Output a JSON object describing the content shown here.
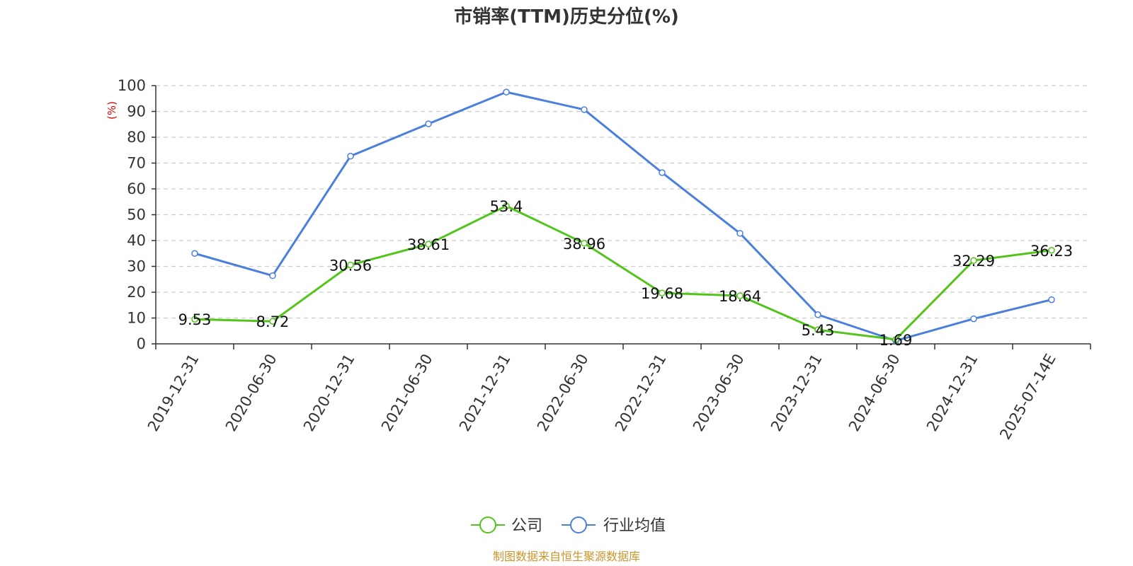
{
  "chart_data": {
    "type": "line",
    "title": "市销率(TTM)历史分位(%)",
    "ylabel": "(%)",
    "xlabel": "",
    "categories": [
      "2019-12-31",
      "2020-06-30",
      "2020-12-31",
      "2021-06-30",
      "2021-12-31",
      "2022-06-30",
      "2022-12-31",
      "2023-06-30",
      "2023-12-31",
      "2024-06-30",
      "2024-12-31",
      "2025-07-14E"
    ],
    "ylim": [
      0,
      100
    ],
    "yticks": [
      0,
      10,
      20,
      30,
      40,
      50,
      60,
      70,
      80,
      90,
      100
    ],
    "grid": true,
    "legend_position": "bottom-center",
    "series": [
      {
        "name": "公司",
        "color": "#52c41a",
        "values": [
          9.53,
          8.72,
          30.56,
          38.61,
          53.4,
          38.96,
          19.68,
          18.64,
          5.43,
          1.69,
          32.29,
          36.23
        ],
        "labels": [
          "9.53",
          "8.72",
          "30.56",
          "38.61",
          "53.4",
          "38.96",
          "19.68",
          "18.64",
          "5.43",
          "1.69",
          "32.29",
          "36.23"
        ]
      },
      {
        "name": "行业均值",
        "color": "#4a7fdc",
        "values": [
          35.0,
          26.4,
          72.7,
          85.2,
          97.5,
          90.7,
          66.3,
          42.8,
          11.3,
          1.2,
          9.7,
          17.1
        ]
      }
    ]
  },
  "source": {
    "text": "制图数据来自恒生聚源数据库",
    "color": "#c8962c"
  },
  "colors": {
    "unit_label": "#e00000",
    "axis": "#333333",
    "grid": "#cccccc"
  }
}
